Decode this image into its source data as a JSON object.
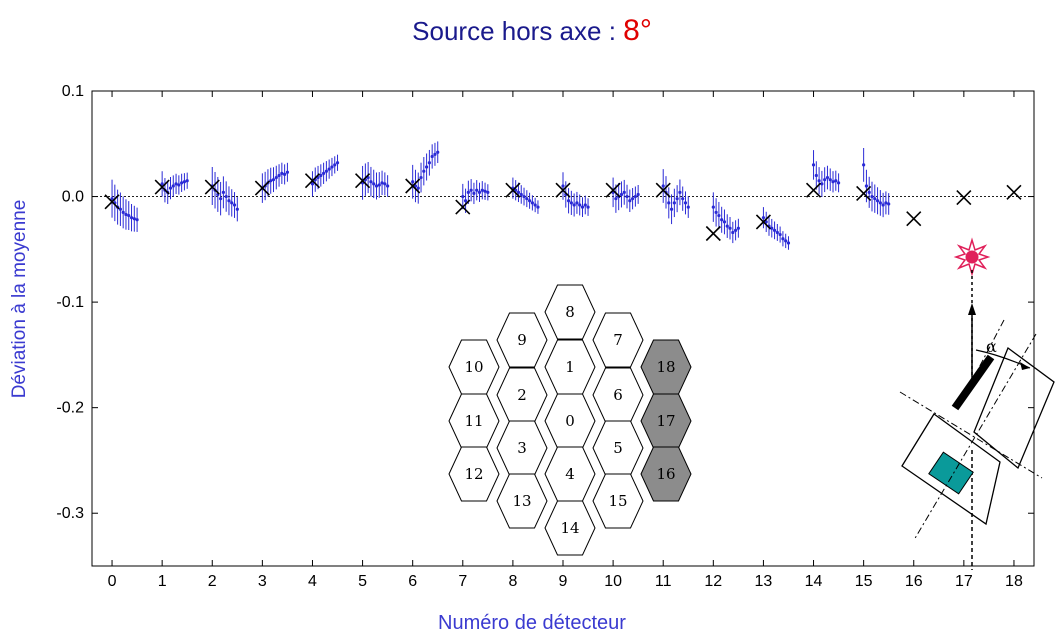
{
  "title": {
    "text": "Source hors axe : ",
    "angle": "8°"
  },
  "chart_data": {
    "type": "scatter",
    "title": "Source hors axe : 8°",
    "xlabel": "Numéro de détecteur",
    "ylabel": "Déviation à la moyenne",
    "xlim": [
      -0.4,
      18.4
    ],
    "ylim": [
      -0.35,
      0.1
    ],
    "x_ticks": [
      0,
      1,
      2,
      3,
      4,
      5,
      6,
      7,
      8,
      9,
      10,
      11,
      12,
      13,
      14,
      15,
      16,
      17,
      18
    ],
    "x_tick_labels": [
      "0",
      "1",
      "2",
      "3",
      "4",
      "5",
      "6",
      "7",
      "8",
      "9",
      "10",
      "11",
      "12",
      "13",
      "14",
      "15",
      "16",
      "17",
      "18"
    ],
    "y_ticks": [
      0.1,
      0.0,
      -0.1,
      -0.2,
      -0.3
    ],
    "y_tick_labels": [
      "0.1",
      "0.0",
      "-0.1",
      "-0.2",
      "-0.3"
    ],
    "reference_line": 0.0,
    "grid": false,
    "series": [
      {
        "marker": "x",
        "color": "#000000",
        "points": [
          {
            "x": 0,
            "y": -0.005
          },
          {
            "x": 1,
            "y": 0.009
          },
          {
            "x": 2,
            "y": 0.009
          },
          {
            "x": 3,
            "y": 0.008
          },
          {
            "x": 4,
            "y": 0.015
          },
          {
            "x": 5,
            "y": 0.015
          },
          {
            "x": 6,
            "y": 0.01
          },
          {
            "x": 7,
            "y": -0.01
          },
          {
            "x": 8,
            "y": 0.006
          },
          {
            "x": 9,
            "y": 0.006
          },
          {
            "x": 10,
            "y": 0.006
          },
          {
            "x": 11,
            "y": 0.006
          },
          {
            "x": 12,
            "y": -0.035
          },
          {
            "x": 13,
            "y": -0.024
          },
          {
            "x": 14,
            "y": 0.006
          },
          {
            "x": 15,
            "y": 0.003
          },
          {
            "x": 16,
            "y": -0.021
          },
          {
            "x": 17,
            "y": -0.001
          },
          {
            "x": 18,
            "y": 0.004
          }
        ]
      },
      {
        "marker": "errorbar-cluster",
        "color": "#2a2ad6",
        "clusters": [
          {
            "detector": 0,
            "means": [
              -0.002,
              -0.006,
              -0.01,
              -0.012,
              -0.015,
              -0.017,
              -0.018,
              -0.02,
              -0.021,
              -0.022
            ],
            "err": 0.018
          },
          {
            "detector": 1,
            "means": [
              0.012,
              0.006,
              0.004,
              0.008,
              0.01,
              0.012,
              0.011,
              0.013,
              0.014,
              0.015
            ],
            "err": 0.012
          },
          {
            "detector": 2,
            "means": [
              0.01,
              0.006,
              0.002,
              -0.002,
              0.004,
              0.0,
              -0.004,
              -0.006,
              -0.008,
              -0.012
            ],
            "err": 0.018
          },
          {
            "detector": 3,
            "means": [
              0.008,
              0.01,
              0.013,
              0.015,
              0.016,
              0.018,
              0.02,
              0.022,
              0.021,
              0.023
            ],
            "err": 0.014
          },
          {
            "detector": 4,
            "means": [
              0.012,
              0.016,
              0.018,
              0.02,
              0.022,
              0.024,
              0.026,
              0.028,
              0.03,
              0.032
            ],
            "err": 0.012
          },
          {
            "detector": 5,
            "means": [
              0.013,
              0.016,
              0.018,
              0.014,
              0.012,
              0.01,
              0.011,
              0.013,
              0.012,
              0.01
            ],
            "err": 0.016
          },
          {
            "detector": 6,
            "means": [
              0.014,
              0.01,
              0.008,
              0.018,
              0.024,
              0.028,
              0.032,
              0.038,
              0.04,
              0.042
            ],
            "err": 0.016
          },
          {
            "detector": 7,
            "means": [
              0.0,
              -0.004,
              0.004,
              0.006,
              0.003,
              0.006,
              0.004,
              0.006,
              0.005,
              0.004
            ],
            "err": 0.012
          },
          {
            "detector": 8,
            "means": [
              0.008,
              0.006,
              0.004,
              0.002,
              0.0,
              -0.002,
              -0.004,
              -0.006,
              -0.008,
              -0.01
            ],
            "err": 0.01
          },
          {
            "detector": 9,
            "means": [
              0.01,
              0.002,
              -0.004,
              -0.006,
              -0.008,
              -0.006,
              -0.008,
              -0.01,
              -0.008,
              -0.01
            ],
            "err": 0.013
          },
          {
            "detector": 10,
            "means": [
              0.004,
              -0.002,
              0.0,
              0.002,
              0.004,
              0.0,
              -0.004,
              -0.002,
              0.0,
              0.002
            ],
            "err": 0.014
          },
          {
            "detector": 11,
            "means": [
              0.01,
              0.004,
              -0.006,
              -0.012,
              -0.006,
              -0.002,
              0.004,
              -0.002,
              -0.006,
              -0.01
            ],
            "err": 0.016
          },
          {
            "detector": 12,
            "means": [
              -0.01,
              -0.015,
              -0.018,
              -0.022,
              -0.024,
              -0.028,
              -0.03,
              -0.034,
              -0.032,
              -0.03
            ],
            "err": 0.014
          },
          {
            "detector": 13,
            "means": [
              -0.02,
              -0.024,
              -0.028,
              -0.03,
              -0.032,
              -0.034,
              -0.036,
              -0.04,
              -0.042,
              -0.044
            ],
            "err": 0.01
          },
          {
            "detector": 14,
            "means": [
              0.03,
              0.02,
              0.015,
              0.012,
              0.016,
              0.018,
              0.016,
              0.014,
              0.015,
              0.013
            ],
            "err": 0.014
          },
          {
            "detector": 15,
            "means": [
              0.03,
              0.01,
              0.004,
              0.0,
              -0.002,
              -0.004,
              -0.006,
              -0.008,
              -0.006,
              -0.007
            ],
            "err": 0.016
          }
        ]
      }
    ]
  },
  "hex_map": {
    "cells": [
      {
        "label": "8",
        "shaded": false
      },
      {
        "label": "9",
        "shaded": false
      },
      {
        "label": "7",
        "shaded": false
      },
      {
        "label": "10",
        "shaded": false
      },
      {
        "label": "1",
        "shaded": false
      },
      {
        "label": "18",
        "shaded": true
      },
      {
        "label": "2",
        "shaded": false
      },
      {
        "label": "6",
        "shaded": false
      },
      {
        "label": "11",
        "shaded": false
      },
      {
        "label": "0",
        "shaded": false
      },
      {
        "label": "17",
        "shaded": true
      },
      {
        "label": "3",
        "shaded": false
      },
      {
        "label": "5",
        "shaded": false
      },
      {
        "label": "12",
        "shaded": false
      },
      {
        "label": "4",
        "shaded": false
      },
      {
        "label": "16",
        "shaded": true
      },
      {
        "label": "13",
        "shaded": false
      },
      {
        "label": "15",
        "shaded": false
      },
      {
        "label": "14",
        "shaded": false
      }
    ],
    "shade_color": "#8c8c8c"
  },
  "schematic": {
    "angle_symbol": "α",
    "source_color": "#e0205a",
    "detector_color": "#0a9a9a"
  }
}
